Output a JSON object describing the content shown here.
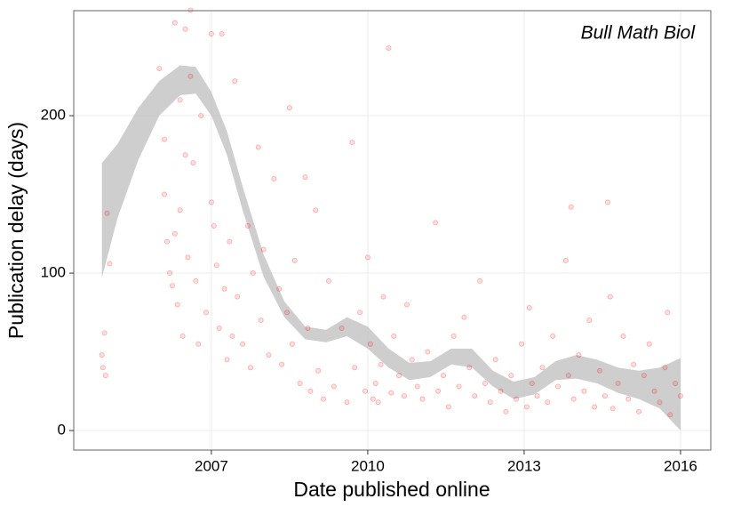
{
  "chart_data": {
    "type": "scatter",
    "annotation": "Bull Math Biol",
    "x_label": "Date published online",
    "y_label": "Publication delay (days)",
    "xlim": [
      2004.36,
      2016.58
    ],
    "ylim": [
      -12.4,
      266.7
    ],
    "xticks": [
      2007,
      2010,
      2013,
      2016
    ],
    "yticks": [
      0,
      100,
      200
    ],
    "grid": true,
    "color": "#ff0000",
    "x": [
      2004.9,
      2004.92,
      2004.95,
      2004.97,
      2005.0,
      2005.05,
      2006.0,
      2006.1,
      2006.1,
      2006.15,
      2006.2,
      2006.25,
      2006.3,
      2006.3,
      2006.35,
      2006.4,
      2006.4,
      2006.45,
      2006.5,
      2006.5,
      2006.55,
      2006.6,
      2006.6,
      2006.65,
      2006.7,
      2006.75,
      2006.8,
      2006.9,
      2007.0,
      2007.0,
      2007.05,
      2007.1,
      2007.15,
      2007.2,
      2007.25,
      2007.3,
      2007.35,
      2007.4,
      2007.45,
      2007.5,
      2007.6,
      2007.7,
      2007.75,
      2007.8,
      2007.9,
      2007.95,
      2008.0,
      2008.1,
      2008.2,
      2008.3,
      2008.35,
      2008.45,
      2008.5,
      2008.55,
      2008.6,
      2008.7,
      2008.8,
      2008.85,
      2008.9,
      2009.0,
      2009.05,
      2009.15,
      2009.25,
      2009.35,
      2009.5,
      2009.6,
      2009.7,
      2009.75,
      2009.85,
      2009.95,
      2010.0,
      2010.05,
      2010.1,
      2010.15,
      2010.2,
      2010.25,
      2010.3,
      2010.4,
      2010.45,
      2010.5,
      2010.6,
      2010.7,
      2010.75,
      2010.85,
      2010.95,
      2011.05,
      2011.15,
      2011.3,
      2011.35,
      2011.45,
      2011.55,
      2011.65,
      2011.75,
      2011.85,
      2011.95,
      2012.05,
      2012.15,
      2012.25,
      2012.35,
      2012.45,
      2012.55,
      2012.65,
      2012.75,
      2012.85,
      2012.95,
      2013.05,
      2013.1,
      2013.15,
      2013.25,
      2013.35,
      2013.45,
      2013.55,
      2013.65,
      2013.8,
      2013.85,
      2013.9,
      2013.95,
      2014.05,
      2014.15,
      2014.25,
      2014.35,
      2014.45,
      2014.55,
      2014.6,
      2014.65,
      2014.7,
      2014.8,
      2014.9,
      2015.0,
      2015.1,
      2015.2,
      2015.3,
      2015.4,
      2015.5,
      2015.6,
      2015.7,
      2015.75,
      2015.8,
      2015.9,
      2016.0
    ],
    "values": [
      48,
      40,
      62,
      35,
      138,
      106,
      230,
      185,
      150,
      120,
      100,
      92,
      259,
      125,
      80,
      210,
      140,
      60,
      255,
      175,
      110,
      267,
      225,
      170,
      95,
      55,
      200,
      75,
      252,
      145,
      130,
      105,
      65,
      252,
      90,
      45,
      120,
      60,
      222,
      85,
      55,
      130,
      40,
      100,
      180,
      70,
      115,
      48,
      160,
      90,
      42,
      75,
      205,
      55,
      108,
      30,
      161,
      65,
      25,
      140,
      38,
      20,
      95,
      28,
      65,
      18,
      183,
      40,
      75,
      25,
      110,
      55,
      20,
      30,
      18,
      42,
      85,
      243,
      24,
      60,
      35,
      22,
      80,
      45,
      28,
      20,
      50,
      132,
      25,
      35,
      15,
      60,
      28,
      72,
      40,
      22,
      95,
      30,
      18,
      45,
      25,
      12,
      35,
      20,
      55,
      15,
      78,
      30,
      22,
      40,
      18,
      60,
      28,
      108,
      35,
      142,
      20,
      48,
      25,
      70,
      15,
      38,
      22,
      145,
      85,
      14,
      30,
      60,
      20,
      42,
      12,
      35,
      55,
      25,
      18,
      40,
      75,
      10,
      30,
      22
    ],
    "band": {
      "color": "#bdbdbd",
      "x": [
        2004.9,
        2005.2,
        2005.6,
        2006.0,
        2006.4,
        2006.7,
        2007.0,
        2007.3,
        2007.6,
        2008.0,
        2008.4,
        2008.8,
        2009.2,
        2009.6,
        2010.0,
        2010.4,
        2010.8,
        2011.2,
        2011.6,
        2012.0,
        2012.4,
        2012.8,
        2013.2,
        2013.6,
        2014.0,
        2014.4,
        2014.8,
        2015.2,
        2015.6,
        2016.0
      ],
      "lower": [
        97,
        135,
        172,
        200,
        213,
        214,
        200,
        175,
        140,
        98,
        72,
        58,
        56,
        60,
        52,
        40,
        32,
        34,
        42,
        40,
        28,
        20,
        23,
        32,
        33,
        30,
        24,
        20,
        14,
        0
      ],
      "upper": [
        170,
        182,
        205,
        222,
        232,
        231,
        215,
        190,
        155,
        112,
        82,
        66,
        64,
        72,
        66,
        52,
        43,
        44,
        52,
        52,
        38,
        31,
        34,
        44,
        48,
        45,
        40,
        38,
        40,
        46
      ]
    }
  }
}
